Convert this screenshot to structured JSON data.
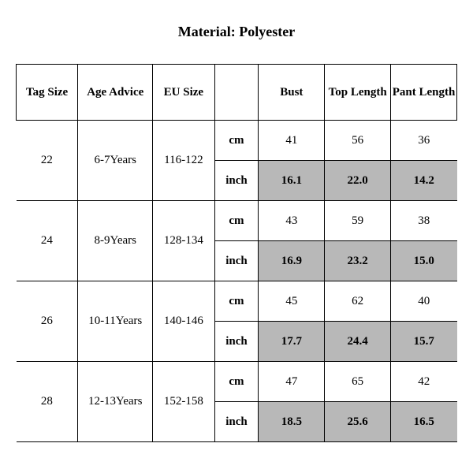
{
  "title": "Material: Polyester",
  "table": {
    "type": "table",
    "background_color": "#ffffff",
    "grid_color": "#000000",
    "shaded_row_color": "#b8b8b8",
    "font_family": "Times New Roman",
    "header_fontsize": 15,
    "cell_fontsize": 15,
    "columns": [
      "Tag Size",
      "Age Advice",
      "EU Size",
      "",
      "Bust",
      "Top Length",
      "Pant Length"
    ],
    "column_widths_pct": [
      14,
      17,
      14,
      10,
      15,
      15,
      15
    ],
    "units": [
      "cm",
      "inch"
    ],
    "rows": [
      {
        "tag_size": "22",
        "age_advice": "6-7Years",
        "eu_size": "116-122",
        "cm": {
          "bust": "41",
          "top_length": "56",
          "pant_length": "36"
        },
        "inch": {
          "bust": "16.1",
          "top_length": "22.0",
          "pant_length": "14.2"
        }
      },
      {
        "tag_size": "24",
        "age_advice": "8-9Years",
        "eu_size": "128-134",
        "cm": {
          "bust": "43",
          "top_length": "59",
          "pant_length": "38"
        },
        "inch": {
          "bust": "16.9",
          "top_length": "23.2",
          "pant_length": "15.0"
        }
      },
      {
        "tag_size": "26",
        "age_advice": "10-11Years",
        "eu_size": "140-146",
        "cm": {
          "bust": "45",
          "top_length": "62",
          "pant_length": "40"
        },
        "inch": {
          "bust": "17.7",
          "top_length": "24.4",
          "pant_length": "15.7"
        }
      },
      {
        "tag_size": "28",
        "age_advice": "12-13Years",
        "eu_size": "152-158",
        "cm": {
          "bust": "47",
          "top_length": "65",
          "pant_length": "42"
        },
        "inch": {
          "bust": "18.5",
          "top_length": "25.6",
          "pant_length": "16.5"
        }
      }
    ]
  }
}
